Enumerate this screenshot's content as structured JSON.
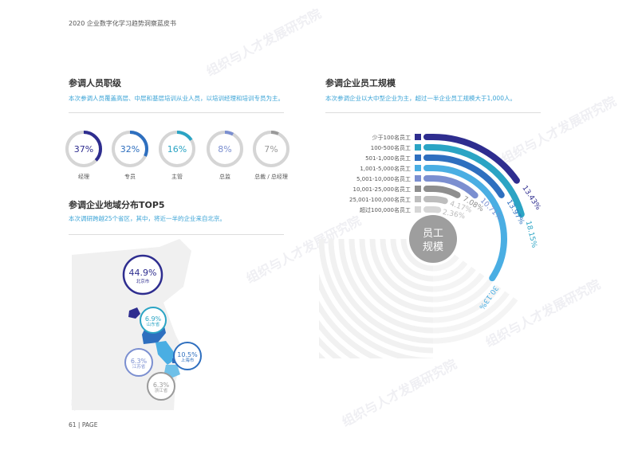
{
  "header": {
    "title": "2020 企业数字化学习趋势洞察蓝皮书"
  },
  "watermark": "组织与人才发展研究院",
  "levels": {
    "title": "参调人员职级",
    "subtitle": "本次参调人员覆盖高层、中层和基层培训从业人员，以培训经理和培训专员为主。",
    "items": [
      {
        "label": "经理",
        "value": 37,
        "text": "37%",
        "color": "#2e2d8f"
      },
      {
        "label": "专员",
        "value": 32,
        "text": "32%",
        "color": "#2e6fbf"
      },
      {
        "label": "主管",
        "value": 16,
        "text": "16%",
        "color": "#2ba4c4"
      },
      {
        "label": "总监",
        "value": 8,
        "text": "8%",
        "color": "#7b8fd0"
      },
      {
        "label": "总裁 / 总经理",
        "value": 7,
        "text": "7%",
        "color": "#9a9a9a"
      }
    ]
  },
  "region": {
    "title": "参调企业地域分布TOP5",
    "subtitle": "本次调研跨越25个省区，其中，将近一半的企业来自北京。",
    "items": [
      {
        "name": "北京市",
        "text": "44.9%",
        "color": "#2e2d8f"
      },
      {
        "name": "山东省",
        "text": "6.9%",
        "color": "#2ba4c4"
      },
      {
        "name": "上海市",
        "text": "10.5%",
        "color": "#2e6fbf"
      },
      {
        "name": "江苏省",
        "text": "6.3%",
        "color": "#7b8fd0"
      },
      {
        "name": "浙江省",
        "text": "6.3%",
        "color": "#9a9a9a"
      }
    ]
  },
  "scale": {
    "title": "参调企业员工规模",
    "subtitle": "本次参调企业以大中型企业为主，超过一半企业员工规模大于1,000人。",
    "center_label": [
      "员工",
      "规模"
    ]
  },
  "chart_data": {
    "type": "radial-bar",
    "categories": [
      "少于100名员工",
      "100-500名员工",
      "501-1,000名员工",
      "1,001-5,000名员工",
      "5,001-10,000名员工",
      "10,001-25,000名员工",
      "25,001-100,000名员工",
      "超过100,000名员工"
    ],
    "values": [
      13.43,
      18.15,
      13.97,
      30.13,
      10.71,
      7.08,
      4.17,
      2.36
    ],
    "labels": [
      "13.43%",
      "18.15%",
      "13.97%",
      "30.13%",
      "10.71%",
      "7.08%",
      "4.17%",
      "2.36%"
    ],
    "colors": [
      "#2e2d8f",
      "#2ba4c4",
      "#2e6fbf",
      "#4aaee3",
      "#7b8fd0",
      "#8e8e8e",
      "#bdbdbd",
      "#d6d6d6"
    ]
  },
  "footer": {
    "page": "61 | PAGE"
  }
}
